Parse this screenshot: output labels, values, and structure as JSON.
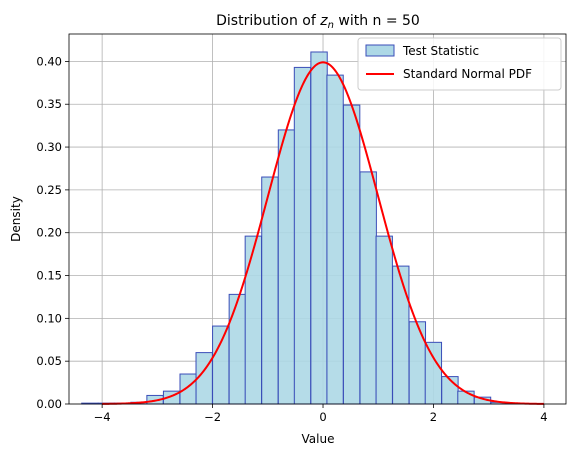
{
  "chart_data": {
    "type": "bar",
    "title_prefix": "Distribution of ",
    "title_var": "z",
    "title_sub": "n",
    "title_suffix": " with n = 50",
    "xlabel": "Value",
    "ylabel": "Density",
    "xlim": [
      -4.6,
      4.4
    ],
    "ylim": [
      0,
      0.432
    ],
    "xticks": [
      -4,
      -2,
      0,
      2,
      4
    ],
    "xtick_labels": [
      "−4",
      "−2",
      "0",
      "2",
      "4"
    ],
    "yticks": [
      0.0,
      0.05,
      0.1,
      0.15,
      0.2,
      0.25,
      0.3,
      0.35,
      0.4
    ],
    "ytick_labels": [
      "0.00",
      "0.05",
      "0.10",
      "0.15",
      "0.20",
      "0.25",
      "0.30",
      "0.35",
      "0.40"
    ],
    "grid": true,
    "legend_position": "top-right",
    "bin_width": 0.2963,
    "bins_left": [
      -4.37,
      -4.07,
      -3.78,
      -3.48,
      -3.19,
      -2.89,
      -2.59,
      -2.3,
      -2.0,
      -1.7,
      -1.41,
      -1.11,
      -0.81,
      -0.52,
      -0.22,
      0.07,
      0.37,
      0.67,
      0.96,
      1.26,
      1.56,
      1.85,
      2.15,
      2.44,
      2.74,
      3.04,
      3.33,
      3.63
    ],
    "series": [
      {
        "name": "Test Statistic",
        "kind": "histogram",
        "values": [
          0.001,
          0.001,
          0.001,
          0.002,
          0.01,
          0.015,
          0.035,
          0.06,
          0.091,
          0.128,
          0.196,
          0.265,
          0.32,
          0.393,
          0.411,
          0.384,
          0.349,
          0.271,
          0.196,
          0.161,
          0.096,
          0.072,
          0.032,
          0.015,
          0.008,
          0.002,
          0.001,
          0.0
        ],
        "fill": "#add8e6",
        "edge": "#3a4db8"
      },
      {
        "name": "Standard Normal PDF",
        "kind": "line",
        "function": "standard normal density",
        "x_range": [
          -4,
          4
        ],
        "color": "#ff0000"
      }
    ]
  }
}
